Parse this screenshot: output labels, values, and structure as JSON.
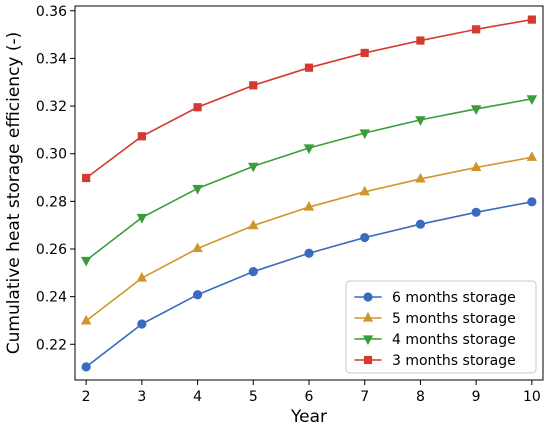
{
  "chart_data": {
    "type": "line",
    "title": "",
    "xlabel": "Year",
    "ylabel": "Cumulative heat storage efficiency (-)",
    "x": [
      2,
      3,
      4,
      5,
      6,
      7,
      8,
      9,
      10
    ],
    "xlim": [
      1.8,
      10.2
    ],
    "ylim": [
      0.205,
      0.362
    ],
    "xticks": [
      2,
      3,
      4,
      5,
      6,
      7,
      8,
      9,
      10
    ],
    "yticks": [
      0.22,
      0.24,
      0.26,
      0.28,
      0.3,
      0.32,
      0.34,
      0.36
    ],
    "ytick_labels": [
      "0.22",
      "0.24",
      "0.26",
      "0.28",
      "0.30",
      "0.32",
      "0.34",
      "0.36"
    ],
    "grid": false,
    "legend": {
      "placement": "bottom-right",
      "order": [
        0,
        1,
        2,
        3
      ]
    },
    "series": [
      {
        "name": "6 months storage",
        "color": "#3a6bbf",
        "marker": "circle",
        "values": [
          0.2105,
          0.2285,
          0.2408,
          0.2505,
          0.2582,
          0.2648,
          0.2704,
          0.2754,
          0.2798
        ]
      },
      {
        "name": "5 months storage",
        "color": "#d1962b",
        "marker": "triangle-up",
        "values": [
          0.2298,
          0.2478,
          0.2602,
          0.2698,
          0.2776,
          0.284,
          0.2894,
          0.2942,
          0.2985
        ]
      },
      {
        "name": "4 months storage",
        "color": "#3a9d3a",
        "marker": "triangle-down",
        "values": [
          0.2552,
          0.2732,
          0.2854,
          0.2947,
          0.3024,
          0.3087,
          0.3142,
          0.3188,
          0.323
        ]
      },
      {
        "name": "3 months storage",
        "color": "#d43a2f",
        "marker": "square",
        "values": [
          0.2898,
          0.3073,
          0.3195,
          0.3287,
          0.3361,
          0.3423,
          0.3475,
          0.3522,
          0.3563
        ]
      }
    ]
  }
}
